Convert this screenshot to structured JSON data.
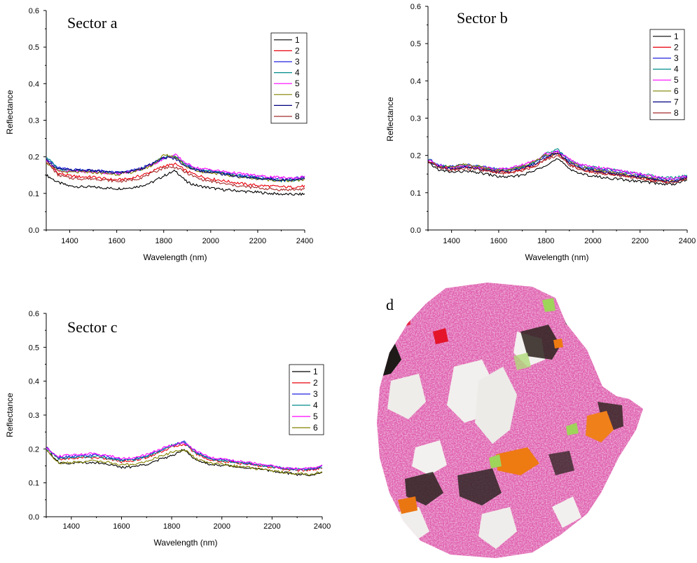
{
  "chart_data": [
    {
      "type": "line",
      "title": "Sector a",
      "xlabel": "Wavelength (nm)",
      "ylabel": "Reflectance",
      "xlim": [
        1300,
        2400
      ],
      "ylim": [
        0.0,
        0.6
      ],
      "xticks": [
        1400,
        1600,
        1800,
        2000,
        2200,
        2400
      ],
      "yticks": [
        0.0,
        0.1,
        0.2,
        0.3,
        0.4,
        0.5,
        0.6
      ],
      "legend_position": "top-right",
      "x": [
        1300,
        1350,
        1400,
        1450,
        1500,
        1550,
        1600,
        1650,
        1700,
        1750,
        1800,
        1850,
        1900,
        1950,
        2000,
        2050,
        2100,
        2150,
        2200,
        2250,
        2300,
        2350,
        2400
      ],
      "series": [
        {
          "name": "1",
          "color": "#000000",
          "values": [
            0.15,
            0.13,
            0.12,
            0.118,
            0.117,
            0.115,
            0.113,
            0.115,
            0.12,
            0.13,
            0.148,
            0.162,
            0.13,
            0.12,
            0.115,
            0.11,
            0.108,
            0.105,
            0.103,
            0.1,
            0.098,
            0.097,
            0.098
          ]
        },
        {
          "name": "2",
          "color": "#e8000b",
          "values": [
            0.19,
            0.155,
            0.148,
            0.145,
            0.145,
            0.14,
            0.137,
            0.14,
            0.148,
            0.16,
            0.175,
            0.18,
            0.16,
            0.148,
            0.14,
            0.135,
            0.13,
            0.125,
            0.122,
            0.12,
            0.118,
            0.117,
            0.12
          ]
        },
        {
          "name": "3",
          "color": "#2020e0",
          "values": [
            0.195,
            0.17,
            0.165,
            0.165,
            0.163,
            0.16,
            0.157,
            0.16,
            0.168,
            0.18,
            0.197,
            0.2,
            0.178,
            0.165,
            0.162,
            0.157,
            0.152,
            0.148,
            0.145,
            0.142,
            0.14,
            0.14,
            0.145
          ]
        },
        {
          "name": "4",
          "color": "#008b8b",
          "values": [
            0.2,
            0.168,
            0.162,
            0.162,
            0.16,
            0.158,
            0.155,
            0.158,
            0.166,
            0.178,
            0.2,
            0.202,
            0.175,
            0.163,
            0.16,
            0.155,
            0.15,
            0.145,
            0.142,
            0.138,
            0.135,
            0.136,
            0.142
          ]
        },
        {
          "name": "5",
          "color": "#ff00ff",
          "values": [
            0.19,
            0.162,
            0.16,
            0.16,
            0.158,
            0.156,
            0.154,
            0.158,
            0.166,
            0.178,
            0.195,
            0.205,
            0.18,
            0.168,
            0.165,
            0.16,
            0.156,
            0.152,
            0.148,
            0.145,
            0.143,
            0.142,
            0.145
          ]
        },
        {
          "name": "6",
          "color": "#808000",
          "values": [
            0.185,
            0.16,
            0.158,
            0.158,
            0.157,
            0.155,
            0.152,
            0.156,
            0.164,
            0.176,
            0.205,
            0.2,
            0.172,
            0.16,
            0.157,
            0.152,
            0.147,
            0.143,
            0.14,
            0.137,
            0.135,
            0.134,
            0.138
          ]
        },
        {
          "name": "7",
          "color": "#000080",
          "values": [
            0.192,
            0.166,
            0.164,
            0.163,
            0.162,
            0.159,
            0.156,
            0.159,
            0.167,
            0.18,
            0.198,
            0.195,
            0.172,
            0.162,
            0.158,
            0.153,
            0.148,
            0.144,
            0.141,
            0.139,
            0.137,
            0.137,
            0.142
          ]
        },
        {
          "name": "8",
          "color": "#a52a2a",
          "values": [
            0.188,
            0.15,
            0.142,
            0.14,
            0.14,
            0.137,
            0.133,
            0.135,
            0.142,
            0.155,
            0.17,
            0.172,
            0.155,
            0.14,
            0.133,
            0.127,
            0.122,
            0.118,
            0.115,
            0.112,
            0.11,
            0.11,
            0.112
          ]
        }
      ]
    },
    {
      "type": "line",
      "title": "Sector b",
      "xlabel": "Wavelength (nm)",
      "ylabel": "Reflectance",
      "xlim": [
        1300,
        2400
      ],
      "ylim": [
        0.0,
        0.6
      ],
      "xticks": [
        1400,
        1600,
        1800,
        2000,
        2200,
        2400
      ],
      "yticks": [
        0.0,
        0.1,
        0.2,
        0.3,
        0.4,
        0.5,
        0.6
      ],
      "legend_position": "top-right",
      "x": [
        1300,
        1350,
        1400,
        1450,
        1500,
        1550,
        1600,
        1650,
        1700,
        1750,
        1800,
        1850,
        1900,
        1950,
        2000,
        2050,
        2100,
        2150,
        2200,
        2250,
        2300,
        2350,
        2400
      ],
      "series": [
        {
          "name": "1",
          "color": "#000000",
          "values": [
            0.18,
            0.16,
            0.155,
            0.157,
            0.155,
            0.15,
            0.143,
            0.142,
            0.148,
            0.158,
            0.175,
            0.19,
            0.165,
            0.15,
            0.145,
            0.14,
            0.137,
            0.133,
            0.13,
            0.127,
            0.123,
            0.124,
            0.135
          ]
        },
        {
          "name": "2",
          "color": "#e8000b",
          "values": [
            0.185,
            0.168,
            0.165,
            0.168,
            0.166,
            0.16,
            0.155,
            0.155,
            0.162,
            0.172,
            0.19,
            0.205,
            0.178,
            0.162,
            0.157,
            0.152,
            0.148,
            0.144,
            0.14,
            0.136,
            0.13,
            0.13,
            0.14
          ]
        },
        {
          "name": "3",
          "color": "#2020e0",
          "values": [
            0.19,
            0.175,
            0.17,
            0.175,
            0.172,
            0.168,
            0.162,
            0.163,
            0.17,
            0.18,
            0.2,
            0.212,
            0.185,
            0.17,
            0.165,
            0.16,
            0.156,
            0.15,
            0.147,
            0.14,
            0.135,
            0.135,
            0.145
          ]
        },
        {
          "name": "4",
          "color": "#008b8b",
          "values": [
            0.19,
            0.173,
            0.168,
            0.172,
            0.17,
            0.166,
            0.16,
            0.162,
            0.17,
            0.18,
            0.205,
            0.215,
            0.188,
            0.172,
            0.168,
            0.164,
            0.16,
            0.155,
            0.15,
            0.146,
            0.14,
            0.14,
            0.148
          ]
        },
        {
          "name": "5",
          "color": "#ff00ff",
          "values": [
            0.188,
            0.172,
            0.167,
            0.172,
            0.17,
            0.167,
            0.163,
            0.166,
            0.175,
            0.185,
            0.205,
            0.21,
            0.19,
            0.175,
            0.17,
            0.165,
            0.16,
            0.155,
            0.15,
            0.145,
            0.138,
            0.137,
            0.145
          ]
        },
        {
          "name": "6",
          "color": "#808000",
          "values": [
            0.186,
            0.17,
            0.168,
            0.176,
            0.172,
            0.166,
            0.16,
            0.162,
            0.17,
            0.182,
            0.2,
            0.205,
            0.182,
            0.168,
            0.162,
            0.157,
            0.152,
            0.147,
            0.143,
            0.138,
            0.132,
            0.132,
            0.14
          ]
        },
        {
          "name": "7",
          "color": "#000080",
          "values": [
            0.184,
            0.168,
            0.163,
            0.168,
            0.166,
            0.162,
            0.157,
            0.158,
            0.165,
            0.176,
            0.195,
            0.208,
            0.18,
            0.165,
            0.16,
            0.155,
            0.15,
            0.146,
            0.142,
            0.137,
            0.131,
            0.131,
            0.141
          ]
        },
        {
          "name": "8",
          "color": "#a52a2a",
          "values": [
            0.183,
            0.166,
            0.16,
            0.165,
            0.163,
            0.158,
            0.152,
            0.153,
            0.16,
            0.17,
            0.19,
            0.2,
            0.175,
            0.16,
            0.155,
            0.15,
            0.146,
            0.142,
            0.138,
            0.133,
            0.128,
            0.128,
            0.138
          ]
        }
      ]
    },
    {
      "type": "line",
      "title": "Sector c",
      "xlabel": "Wavelength (nm)",
      "ylabel": "Reflectance",
      "xlim": [
        1300,
        2400
      ],
      "ylim": [
        0.0,
        0.6
      ],
      "xticks": [
        1400,
        1600,
        1800,
        2000,
        2200,
        2400
      ],
      "yticks": [
        0.0,
        0.1,
        0.2,
        0.3,
        0.4,
        0.5,
        0.6
      ],
      "legend_position": "top-right",
      "x": [
        1300,
        1350,
        1400,
        1450,
        1500,
        1550,
        1600,
        1650,
        1700,
        1750,
        1800,
        1850,
        1900,
        1950,
        2000,
        2050,
        2100,
        2150,
        2200,
        2250,
        2300,
        2350,
        2400
      ],
      "series": [
        {
          "name": "1",
          "color": "#000000",
          "values": [
            0.2,
            0.16,
            0.158,
            0.16,
            0.16,
            0.155,
            0.145,
            0.148,
            0.155,
            0.168,
            0.18,
            0.2,
            0.165,
            0.155,
            0.152,
            0.148,
            0.145,
            0.14,
            0.135,
            0.13,
            0.125,
            0.123,
            0.13
          ]
        },
        {
          "name": "2",
          "color": "#e8000b",
          "values": [
            0.205,
            0.17,
            0.172,
            0.175,
            0.175,
            0.17,
            0.163,
            0.166,
            0.175,
            0.19,
            0.205,
            0.215,
            0.185,
            0.168,
            0.163,
            0.16,
            0.155,
            0.15,
            0.145,
            0.14,
            0.137,
            0.137,
            0.145
          ]
        },
        {
          "name": "3",
          "color": "#2020e0",
          "values": [
            0.205,
            0.175,
            0.178,
            0.18,
            0.182,
            0.176,
            0.168,
            0.17,
            0.18,
            0.195,
            0.21,
            0.222,
            0.19,
            0.172,
            0.168,
            0.163,
            0.158,
            0.153,
            0.148,
            0.143,
            0.14,
            0.14,
            0.148
          ]
        },
        {
          "name": "4",
          "color": "#008b8b",
          "values": [
            0.2,
            0.172,
            0.175,
            0.177,
            0.178,
            0.173,
            0.166,
            0.169,
            0.178,
            0.193,
            0.21,
            0.218,
            0.188,
            0.17,
            0.166,
            0.162,
            0.157,
            0.152,
            0.147,
            0.143,
            0.14,
            0.14,
            0.147
          ]
        },
        {
          "name": "5",
          "color": "#ff00ff",
          "values": [
            0.202,
            0.178,
            0.182,
            0.185,
            0.186,
            0.18,
            0.172,
            0.174,
            0.183,
            0.198,
            0.212,
            0.218,
            0.192,
            0.175,
            0.17,
            0.165,
            0.16,
            0.155,
            0.15,
            0.145,
            0.142,
            0.142,
            0.15
          ]
        },
        {
          "name": "6",
          "color": "#808000",
          "values": [
            0.198,
            0.158,
            0.16,
            0.163,
            0.165,
            0.16,
            0.152,
            0.155,
            0.163,
            0.177,
            0.19,
            0.198,
            0.17,
            0.158,
            0.155,
            0.15,
            0.146,
            0.141,
            0.136,
            0.131,
            0.127,
            0.125,
            0.132
          ]
        }
      ]
    }
  ],
  "map_panel": {
    "label": "d",
    "colors": {
      "pink": "#e060b0",
      "magenta": "#d22e96",
      "white": "#f2f0ee",
      "black": "#1e1a18",
      "orange": "#ee7a12",
      "green": "#9ed45a",
      "red": "#e4152a"
    }
  }
}
